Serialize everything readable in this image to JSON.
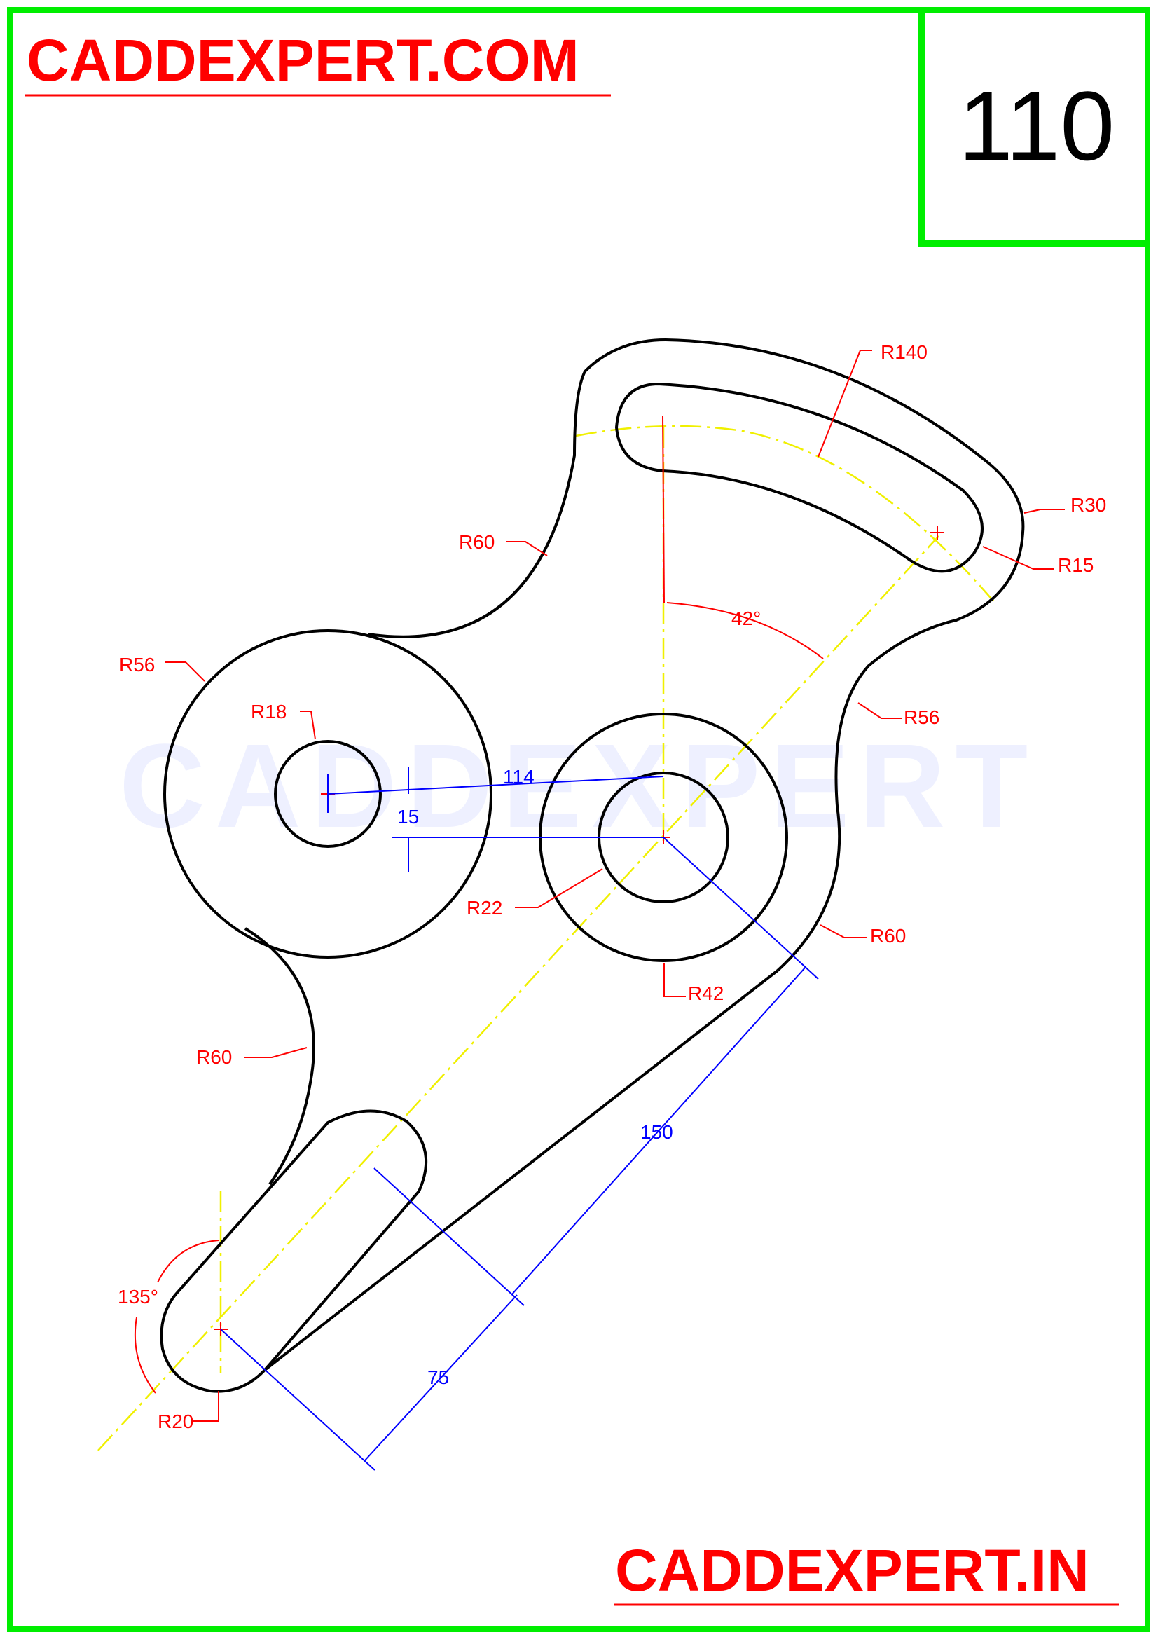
{
  "header": {
    "site_top": "CADDEXPERT.COM",
    "drawing_number": "110"
  },
  "footer": {
    "site_bottom": "CADDEXPERT.IN"
  },
  "watermark": "CADDEXPERT",
  "dimensions": {
    "r140": "R140",
    "r30": "R30",
    "r15": "R15",
    "r60_top": "R60",
    "r56_left": "R56",
    "r18": "R18",
    "r56_right": "R56",
    "angle_42": "42°",
    "d114": "114",
    "d15": "15",
    "r22": "R22",
    "r42": "R42",
    "r60_right": "R60",
    "r60_left": "R60",
    "d150": "150",
    "angle_135": "135°",
    "d75": "75",
    "r20": "R20"
  },
  "colors": {
    "frame": "#00ee00",
    "outline": "#000000",
    "annotation": "#ff0000",
    "linear_dim": "#0000ff",
    "centerline": "#ffff00"
  }
}
